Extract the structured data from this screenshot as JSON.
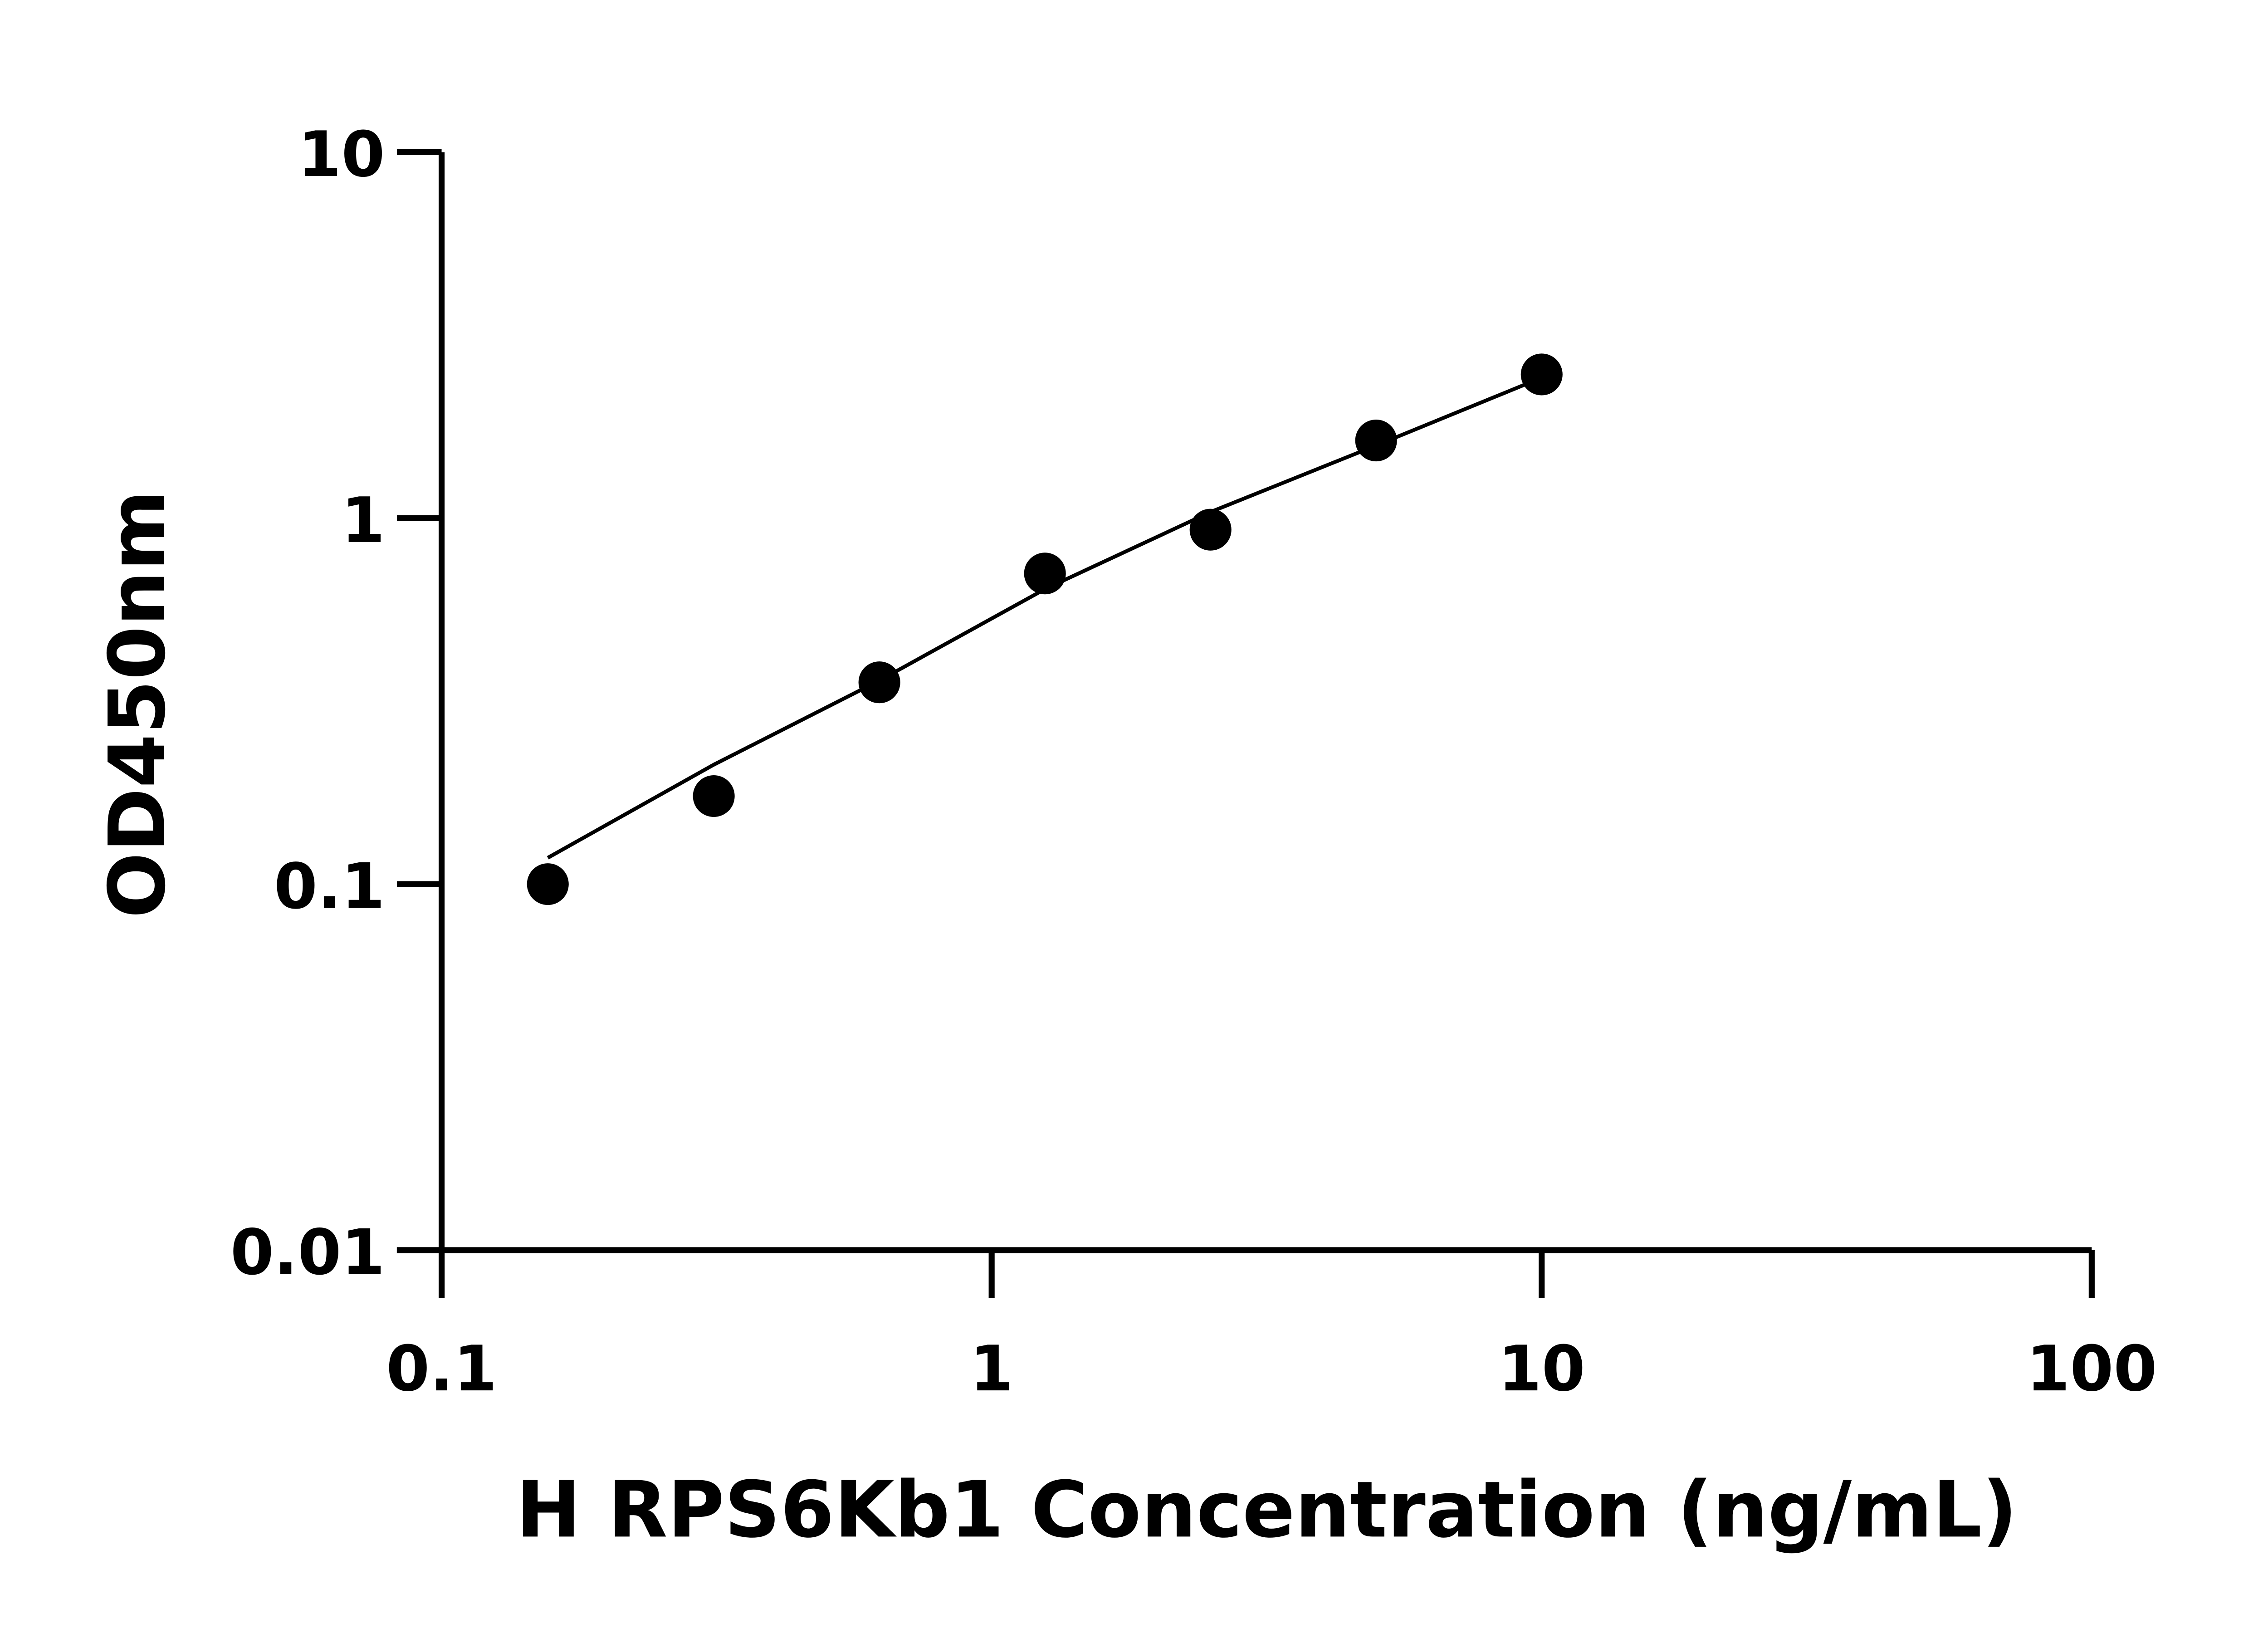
{
  "chart_data": {
    "type": "scatter",
    "title": "",
    "xlabel": "H RPS6Kb1 Concentration (ng/mL)",
    "ylabel": "OD450nm",
    "xscale": "log",
    "yscale": "log",
    "xlim": [
      0.1,
      100
    ],
    "ylim": [
      0.01,
      10
    ],
    "xticks": [
      "0.1",
      "1",
      "10",
      "100"
    ],
    "yticks": [
      "0.01",
      "0.1",
      "1",
      "10"
    ],
    "grid": false,
    "points": [
      {
        "x": 0.156,
        "y": 0.1
      },
      {
        "x": 0.3125,
        "y": 0.174
      },
      {
        "x": 0.625,
        "y": 0.356
      },
      {
        "x": 1.25,
        "y": 0.706
      },
      {
        "x": 2.5,
        "y": 0.93
      },
      {
        "x": 5,
        "y": 1.63
      },
      {
        "x": 10,
        "y": 2.47
      }
    ],
    "fit_curve": [
      {
        "x": 0.156,
        "y": 0.118
      },
      {
        "x": 0.3125,
        "y": 0.212
      },
      {
        "x": 0.625,
        "y": 0.36
      },
      {
        "x": 1.25,
        "y": 0.64
      },
      {
        "x": 2.5,
        "y": 1.04
      },
      {
        "x": 5,
        "y": 1.58
      },
      {
        "x": 10,
        "y": 2.42
      }
    ],
    "colors": {
      "points": "#000000",
      "line": "#000000",
      "axes": "#000000"
    }
  }
}
